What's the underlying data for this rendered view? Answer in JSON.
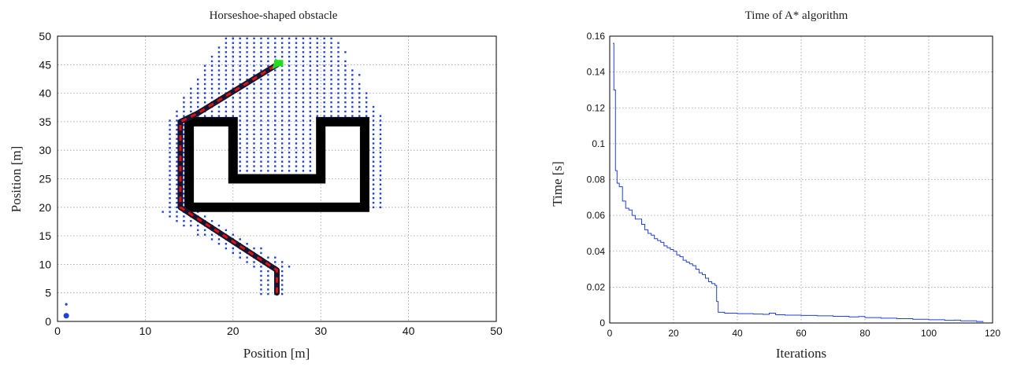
{
  "chart_data": [
    {
      "type": "scatter",
      "title": "Horseshoe-shaped obstacle",
      "xlabel": "Position [m]",
      "ylabel": "Position [m]",
      "xlim": [
        0,
        50
      ],
      "ylim": [
        0,
        50
      ],
      "xticks": [
        "0",
        "10",
        "20",
        "30",
        "40",
        "50"
      ],
      "yticks": [
        "0",
        "5",
        "10",
        "15",
        "20",
        "25",
        "30",
        "35",
        "40",
        "45",
        "50"
      ],
      "grid": true,
      "colors": {
        "explored": "#1f3fe0",
        "path_dashed": "#e01010",
        "path_nodes": "#151530",
        "obstacle": "#000000",
        "goal": "#22dd22"
      },
      "obstacle": {
        "outer": [
          [
            15,
            35
          ],
          [
            20,
            35
          ],
          [
            20,
            25
          ],
          [
            30,
            25
          ],
          [
            30,
            35
          ],
          [
            35,
            35
          ],
          [
            35,
            20
          ],
          [
            15,
            20
          ]
        ],
        "wall_thickness": 1.2
      },
      "path": [
        [
          25,
          5
        ],
        [
          25,
          9
        ],
        [
          14,
          20
        ],
        [
          14,
          35
        ],
        [
          16,
          36.5
        ],
        [
          25,
          45
        ]
      ],
      "start": [
        25,
        5
      ],
      "goal": [
        25,
        45
      ],
      "stray_points": [
        [
          1,
          1
        ],
        [
          1,
          3
        ]
      ],
      "explored_region": {
        "spacing": 0.8,
        "vertical_strip": {
          "x": [
            23.5,
            26.5
          ],
          "y": [
            5,
            10
          ]
        },
        "diagonal_band": {
          "from": [
            24.5,
            9.5
          ],
          "to": [
            13.5,
            19.5
          ],
          "half_width": 1.6
        },
        "left_column": {
          "x": [
            12.8,
            14.8
          ],
          "y": [
            18.5,
            36
          ]
        },
        "right_column": {
          "x": [
            35,
            37
          ],
          "y": [
            20,
            36
          ]
        },
        "inner_u": {
          "x": [
            20.5,
            29.5
          ],
          "y": [
            25.5,
            35.5
          ]
        },
        "upper_dome": {
          "bottom_y": 35,
          "top_y": 50,
          "x_left_bottom": 13,
          "x_right_bottom": 37,
          "x_left_top": 19.5,
          "x_right_top": 31.5
        }
      }
    },
    {
      "type": "line",
      "title": "Time of A* algorithm",
      "xlabel": "Iterations",
      "ylabel": "Time [s]",
      "xlim": [
        0,
        120
      ],
      "ylim": [
        0,
        0.16
      ],
      "xticks": [
        "0",
        "20",
        "40",
        "60",
        "80",
        "100",
        "120"
      ],
      "yticks": [
        "0",
        "0.02",
        "0.04",
        "0.06",
        "0.08",
        "0.1",
        "0.12",
        "0.14",
        "0.16"
      ],
      "grid": true,
      "color": "#1f3fe0",
      "x": [
        1,
        1.3,
        1.8,
        2.3,
        3,
        4,
        5,
        6,
        7,
        8,
        9,
        10,
        11,
        12,
        13,
        14,
        15,
        16,
        17,
        18,
        19,
        20,
        21,
        22,
        23,
        24,
        25,
        26,
        27,
        28,
        29,
        30,
        31,
        32,
        33,
        33.5,
        34,
        36,
        40,
        45,
        48,
        50,
        52,
        55,
        60,
        65,
        70,
        75,
        78,
        80,
        85,
        90,
        95,
        100,
        105,
        108,
        110,
        115,
        117
      ],
      "y": [
        0.156,
        0.13,
        0.085,
        0.078,
        0.076,
        0.068,
        0.064,
        0.063,
        0.06,
        0.058,
        0.058,
        0.055,
        0.052,
        0.05,
        0.049,
        0.047,
        0.046,
        0.045,
        0.043,
        0.042,
        0.041,
        0.04,
        0.038,
        0.037,
        0.035,
        0.034,
        0.033,
        0.032,
        0.03,
        0.028,
        0.027,
        0.025,
        0.023,
        0.022,
        0.021,
        0.012,
        0.006,
        0.0055,
        0.0052,
        0.005,
        0.0048,
        0.0055,
        0.0046,
        0.0044,
        0.0042,
        0.004,
        0.0037,
        0.0034,
        0.0036,
        0.003,
        0.0027,
        0.0024,
        0.0021,
        0.0018,
        0.0015,
        0.0016,
        0.0012,
        0.0008,
        0.0005
      ]
    }
  ]
}
